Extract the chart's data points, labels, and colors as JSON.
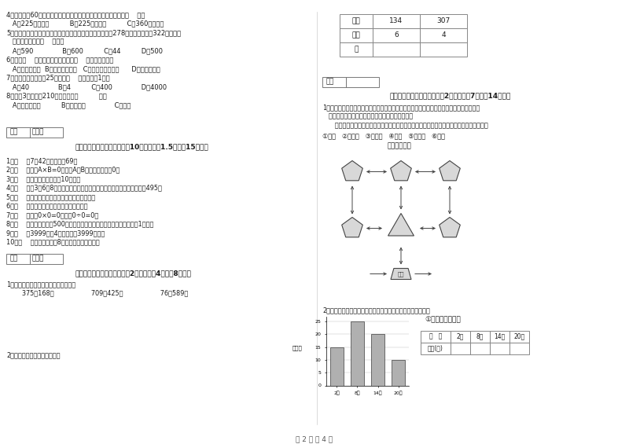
{
  "bg_color": "#ffffff",
  "text_color": "#222222",
  "title_section3": "三、仔细推敲，正确判断（共10小题，每题1.5分，共15分）。",
  "title_section4": "四、看清题目，细心计算（共2小题，每题4分，共8分）。",
  "title_section5": "五、认真思考，综合能力（共2小题，每题7分，共14分）。",
  "score_box_label": "得分",
  "reviewer_label": "评卷人",
  "left_questions_4_8": [
    [
      "4．把一根长60厘米的铁丝围成一个正方形，这个正方形的面积是（    ）。"
    ],
    [
      "   A．225平方分米          B．225平方厘米          C．360平方厘米"
    ],
    [
      "5．广州新电视塔是广州市目前最高的建筑，它比中信大厦高278米，中信大厦高322米，那么"
    ],
    [
      "   广州新电视塔高（    ）米。"
    ],
    [
      "   A．590              B．600          C．44          D．500"
    ],
    [
      "6．明天（    ）会下雨，今天下午我（    ）游遍全世界。"
    ],
    [
      "   A．一定，可能  B．可能，不可能   C．不可能，不可能      D．可能，可能"
    ],
    [
      "7．平均每个同学体重25千克，（    ）名同学重1吨。"
    ],
    [
      "   A．40              B．4          C．400              D．4000"
    ],
    [
      "8．爸爸3小时行了210千米，他是（          ）。"
    ],
    [
      "   A．乘公共汽车          B．骑自行车              C．步行"
    ]
  ],
  "section3_items": [
    "1．（    ）7个42相加的和是69。",
    "2．（    ）如果A×B=0，那么A和B中至少有一个是0。",
    "3．（    ）小明家客厅面积是10公顷。",
    "4．（    ）用3、6、8这三个数字组成的最大三位数与最小三位数，它们相差495。",
    "5．（    ）长方形的周长就是它四条边长度的和。",
    "6．（    ）小明面对着东方时，背对着西方。",
    "7．（    ）因为0×0=0，所以0÷0=0。",
    "8．（    ）小明家离学校500米，他每天上学、回家，一个来回一共要走1千米。",
    "9．（    ）3999克与4千克相比，3999克重。",
    "10．（    ）一个两位数乘8，积一定也是两位数。"
  ],
  "section4_text": [
    "1．竖式计算，要求验算的请写出验算。",
    "   375＋168＝                  709－425＝                  76＋589＝"
  ],
  "section4_item2": "2．把乘积填在下面的空格里。",
  "multiply_headers": [
    "乘数",
    "134",
    "307"
  ],
  "multiply_row2": [
    "乘数",
    "6",
    "4"
  ],
  "multiply_row3": [
    "积",
    "",
    ""
  ],
  "section5_q1_lines": [
    "1．走进动物园大门，正北面是狮子山和熊猫馆，狮子山的东侧是飞禽馆，西侧是猴园，大象",
    "   馆和鱼馆的场地分别在动物园的东北角和西北角。",
    "      根据小强的描述，请你把这些动物场馆所在的位置，在动物园的导游图上用序号表示出来。"
  ],
  "section5_q1_labels": "①狮山   ②熊猫馆   ③飞禽馆   ④猴园   ⑤大象馆   ⑥鱼馆",
  "map_title": "动物园导游图",
  "section5_q2_text": "2．下面是气温自测仪上记录的某天四个不同时间的气温情况：",
  "chart_ylabel": "（度）",
  "chart_title": "①根据统计图填表",
  "chart_times": [
    "2时",
    "8时",
    "14时",
    "20时"
  ],
  "chart_values": [
    15,
    25,
    20,
    10
  ],
  "chart_yticks": [
    0,
    5,
    10,
    15,
    20,
    25
  ],
  "table2_headers": [
    "时   间",
    "2时",
    "8时",
    "14时",
    "20时"
  ],
  "table2_row": [
    "气温(度)",
    "",
    "",
    "",
    ""
  ],
  "page_footer": "第 2 页 共 4 页"
}
